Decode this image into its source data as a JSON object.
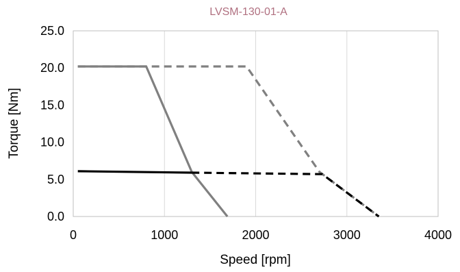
{
  "chart_data": {
    "type": "line",
    "title": "LVSM-130-01-A",
    "title_color": "#b07080",
    "xlabel": "Speed [rpm]",
    "ylabel": "Torque [Nm]",
    "xlim": [
      0,
      4000
    ],
    "ylim": [
      0,
      25
    ],
    "x_ticks": [
      0,
      1000,
      2000,
      3000,
      4000
    ],
    "y_ticks": [
      0,
      5,
      10,
      15,
      20,
      25
    ],
    "x_tick_labels": [
      "0",
      "1000",
      "2000",
      "3000",
      "4000"
    ],
    "y_tick_labels": [
      "0.0",
      "5.0",
      "10.0",
      "15.0",
      "20.0",
      "25.0"
    ],
    "grid": "vertical",
    "legend": "none",
    "series": [
      {
        "style": "solid",
        "color": "#808080",
        "x": [
          50,
          800,
          1300,
          1690
        ],
        "y": [
          20.2,
          20.2,
          6.0,
          0
        ]
      },
      {
        "style": "dashed",
        "color": "#808080",
        "x": [
          50,
          1900,
          2700,
          3350
        ],
        "y": [
          20.2,
          20.2,
          6.0,
          0
        ]
      },
      {
        "style": "solid",
        "color": "#000000",
        "x": [
          50,
          1300
        ],
        "y": [
          6.1,
          5.9
        ]
      },
      {
        "style": "dashed",
        "color": "#000000",
        "x": [
          1300,
          2730,
          3350
        ],
        "y": [
          5.9,
          5.7,
          0
        ]
      }
    ]
  }
}
